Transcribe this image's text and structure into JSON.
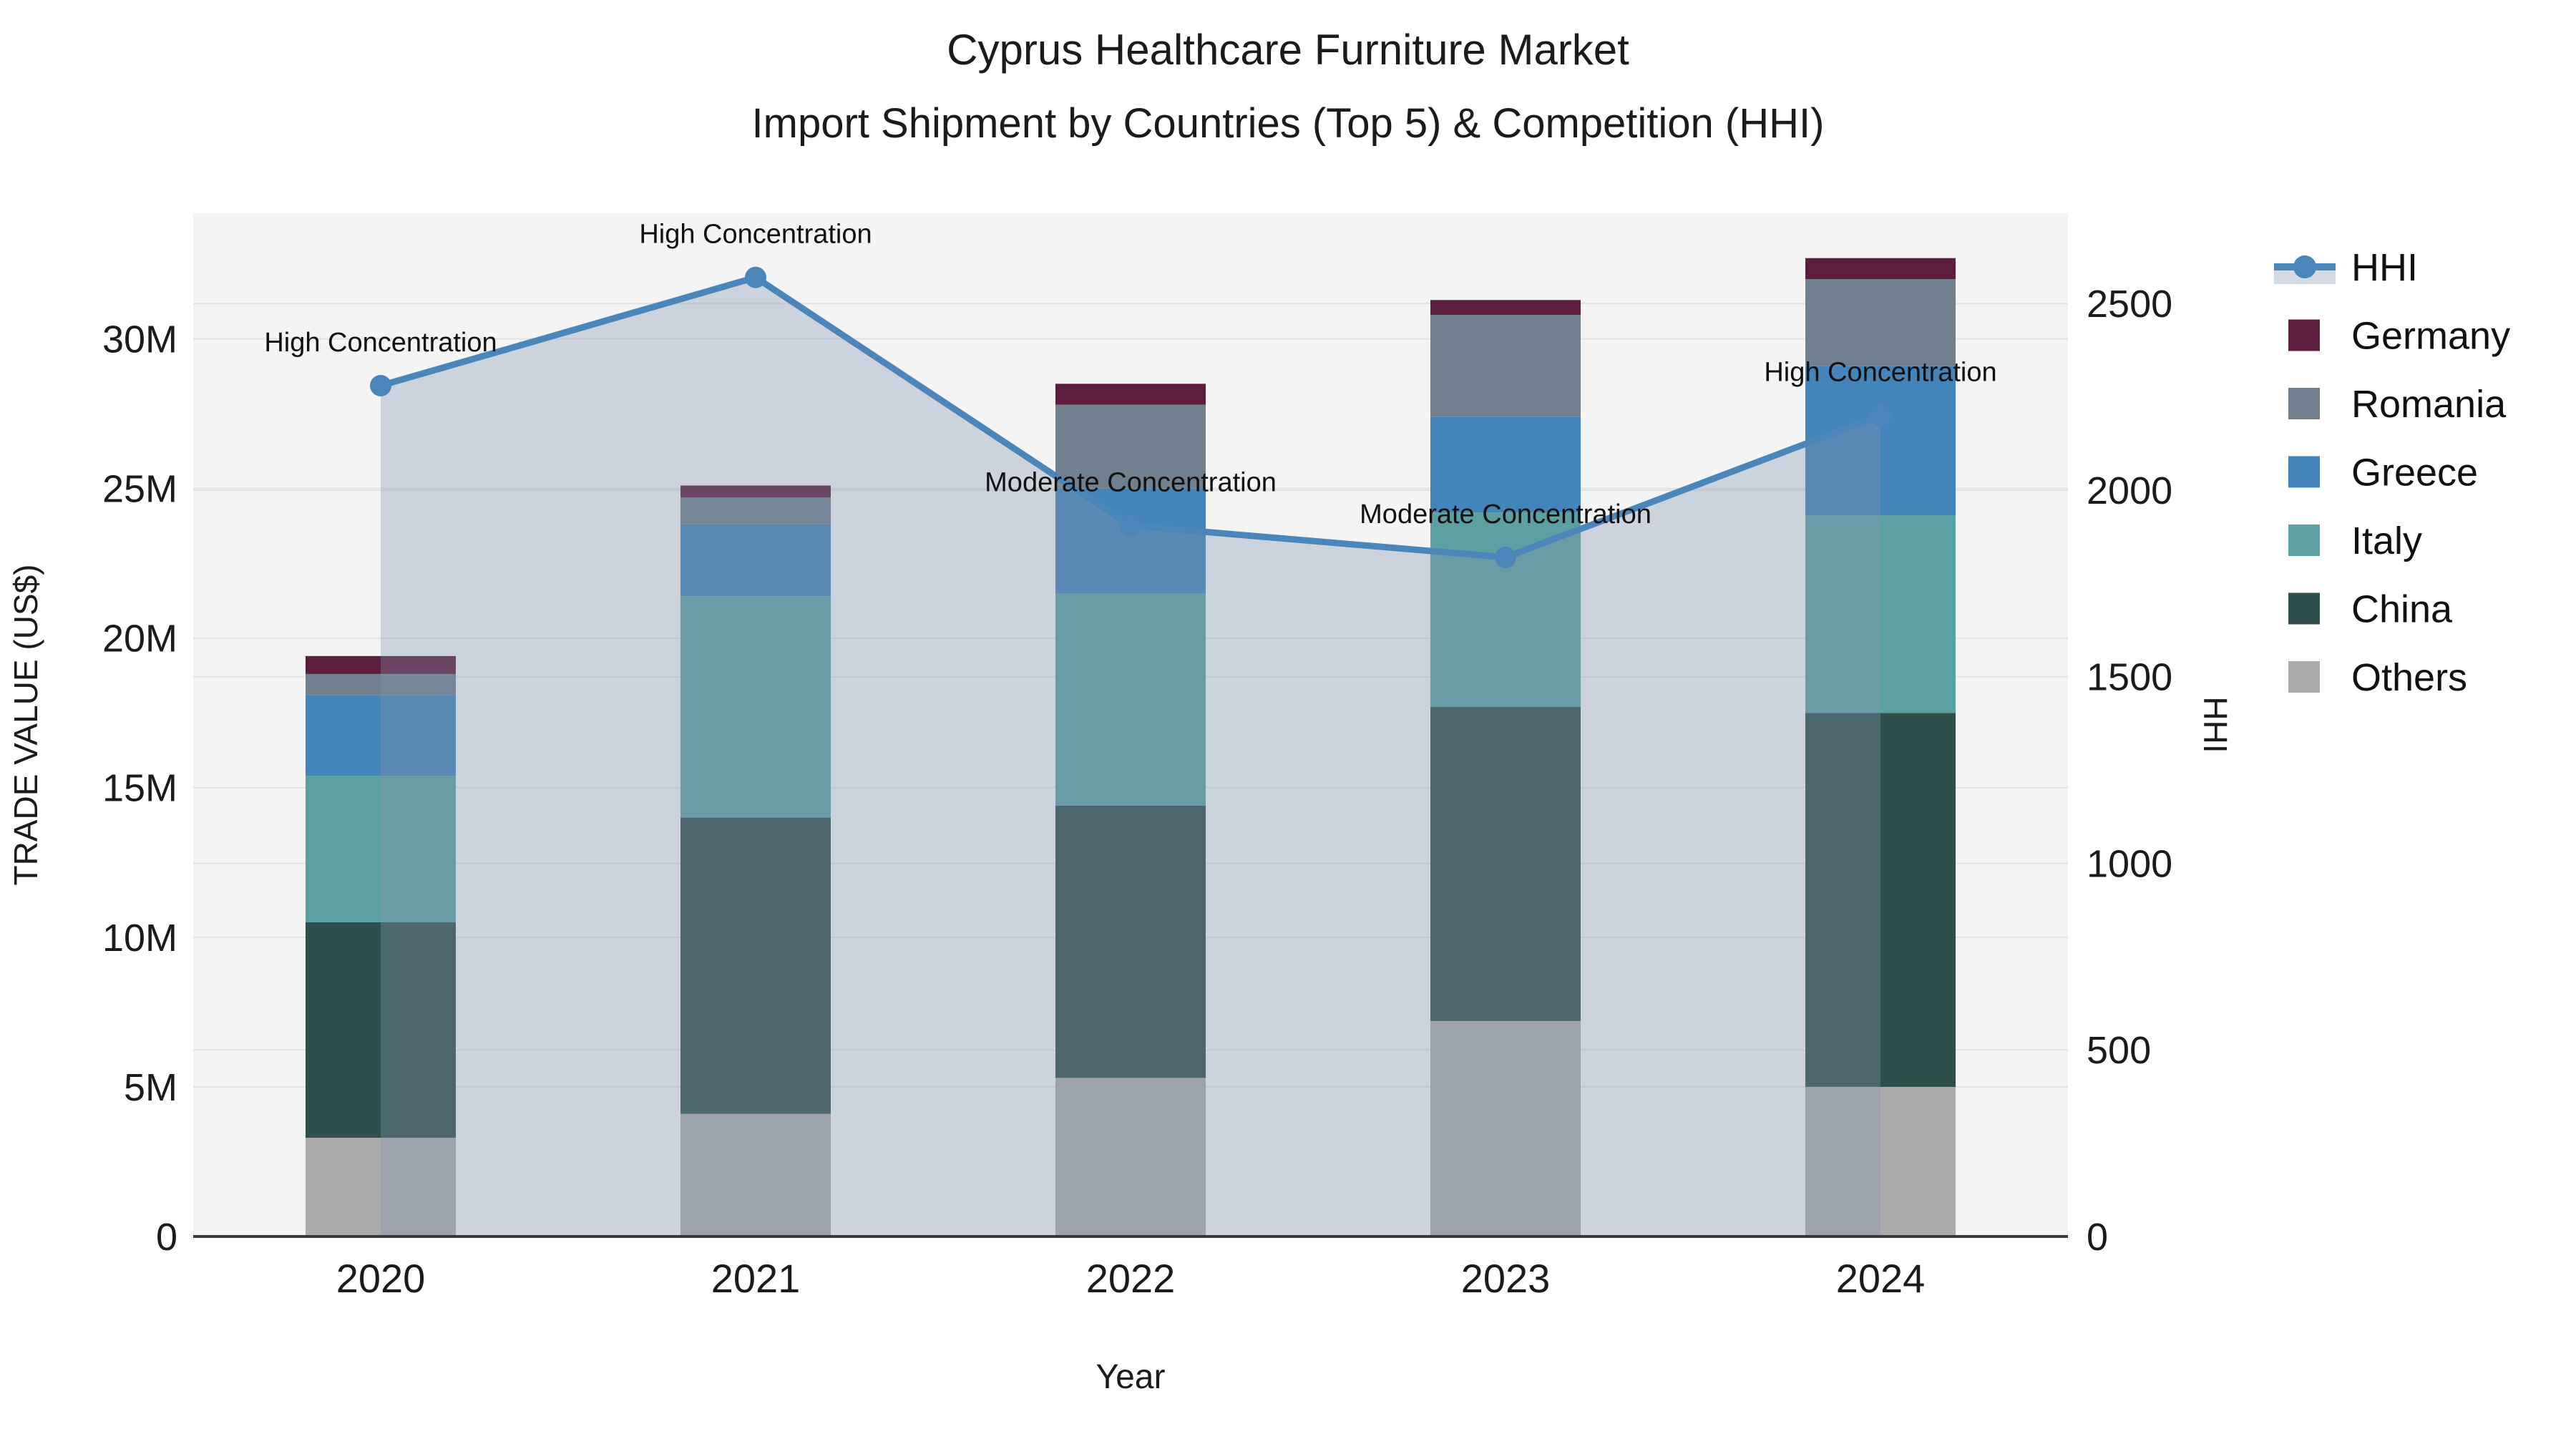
{
  "title": {
    "line1": "Cyprus Healthcare Furniture Market",
    "line2": "Import Shipment by Countries (Top 5) & Competition (HHI)"
  },
  "axes": {
    "x_title": "Year",
    "y_left_title": "TRADE VALUE (US$)",
    "y_right_title": "HHI",
    "y_left_ticks": [
      {
        "label": "0",
        "value": 0
      },
      {
        "label": "5M",
        "value": 5
      },
      {
        "label": "10M",
        "value": 10
      },
      {
        "label": "15M",
        "value": 15
      },
      {
        "label": "20M",
        "value": 20
      },
      {
        "label": "25M",
        "value": 25
      },
      {
        "label": "30M",
        "value": 30
      }
    ],
    "y_right_ticks": [
      {
        "label": "0",
        "value": 0
      },
      {
        "label": "500",
        "value": 500
      },
      {
        "label": "1000",
        "value": 1000
      },
      {
        "label": "1500",
        "value": 1500
      },
      {
        "label": "2000",
        "value": 2000
      },
      {
        "label": "2500",
        "value": 2500
      }
    ]
  },
  "chart_data": {
    "type": "bar+line",
    "title": "Cyprus Healthcare Furniture Market — Import Shipment by Countries (Top 5) & Competition (HHI)",
    "xlabel": "Year",
    "ylabel_left": "TRADE VALUE (US$)",
    "ylabel_right": "HHI",
    "categories": [
      "2020",
      "2021",
      "2022",
      "2023",
      "2024"
    ],
    "units": "millions US$",
    "stack_order_bottom_to_top": [
      "Others",
      "China",
      "Italy",
      "Greece",
      "Romania",
      "Germany"
    ],
    "series": [
      {
        "name": "Others",
        "values": [
          3.3,
          4.1,
          5.3,
          7.2,
          5.0
        ],
        "color": "#ABABAB"
      },
      {
        "name": "China",
        "values": [
          7.2,
          9.9,
          9.1,
          10.5,
          12.5
        ],
        "color": "#2E4F4B"
      },
      {
        "name": "Italy",
        "values": [
          4.9,
          7.4,
          7.1,
          6.5,
          6.6
        ],
        "color": "#5BA0A2"
      },
      {
        "name": "Greece",
        "values": [
          2.7,
          2.4,
          3.5,
          3.2,
          5.0
        ],
        "color": "#4384BB"
      },
      {
        "name": "Romania",
        "values": [
          0.7,
          0.9,
          2.8,
          3.4,
          2.9
        ],
        "color": "#71808F"
      },
      {
        "name": "Germany",
        "values": [
          0.6,
          0.4,
          0.7,
          0.5,
          0.7
        ],
        "color": "#5D1D3E"
      }
    ],
    "bar_totals": [
      19.4,
      25.1,
      28.5,
      31.3,
      32.7
    ],
    "line": {
      "name": "HHI",
      "values": [
        2280,
        2570,
        1905,
        1820,
        2200
      ],
      "color": "#4A86BA",
      "fill_color": "rgba(133,150,175,0.35)",
      "fill": "tozeroy"
    },
    "annotations": [
      {
        "category": "2020",
        "label": "High Concentration"
      },
      {
        "category": "2021",
        "label": "High Concentration"
      },
      {
        "category": "2022",
        "label": "Moderate Concentration"
      },
      {
        "category": "2023",
        "label": "Moderate Concentration"
      },
      {
        "category": "2024",
        "label": "High Concentration"
      }
    ],
    "y_left_range": [
      0,
      34.2
    ],
    "y_right_range": [
      0,
      2742
    ],
    "grid": true,
    "legend_position": "right"
  },
  "legend": {
    "items": [
      {
        "label": "HHI",
        "kind": "line"
      },
      {
        "label": "Germany",
        "kind": "square"
      },
      {
        "label": "Romania",
        "kind": "square"
      },
      {
        "label": "Greece",
        "kind": "square"
      },
      {
        "label": "Italy",
        "kind": "square"
      },
      {
        "label": "China",
        "kind": "square"
      },
      {
        "label": "Others",
        "kind": "square"
      }
    ]
  },
  "colors": {
    "plot_background": "#F4F4F4",
    "gridline": "#E2E2E2",
    "axis_line": "#3A3A3A",
    "text": "#1B1B1B"
  }
}
